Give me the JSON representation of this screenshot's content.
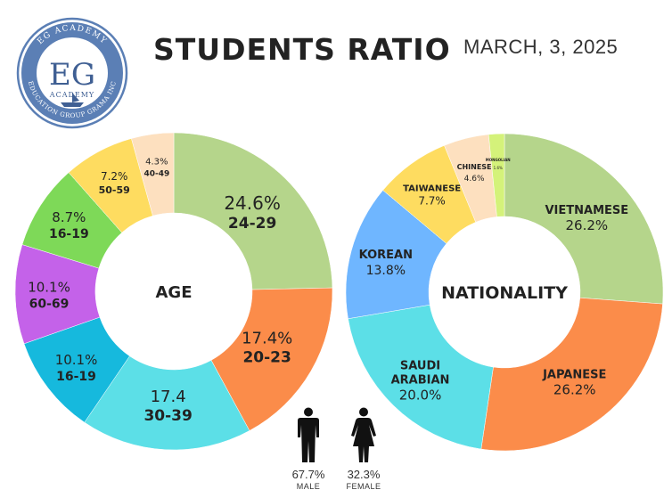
{
  "header": {
    "title": "STUDENTS RATIO",
    "date": "MARCH, 3, 2025"
  },
  "logo": {
    "monogram": "EG",
    "inner_word": "ACADEMY",
    "ring_top": "EG ACADEMY",
    "ring_bottom": "EDUCATION GROUP GRAMA INC",
    "colors": {
      "ring": "#5b7fb5",
      "text": "#3f5f93"
    }
  },
  "chart_data": [
    {
      "type": "pie",
      "title": "AGE",
      "slices": [
        {
          "value_label": "24.6%",
          "category": "24-29",
          "value": 24.6,
          "color": "#b5d58b"
        },
        {
          "value_label": "17.4%",
          "category": "20-23",
          "value": 17.4,
          "color": "#fb8c4a"
        },
        {
          "value_label": "17.4",
          "category": "30-39",
          "value": 17.4,
          "color": "#5cdfe7"
        },
        {
          "value_label": "10.1%",
          "category": "16-19",
          "value": 10.1,
          "color": "#16b9dd"
        },
        {
          "value_label": "10.1%",
          "category": "60-69",
          "value": 10.1,
          "color": "#c462e9"
        },
        {
          "value_label": "8.7%",
          "category": "16-19",
          "value": 8.7,
          "color": "#7ed958"
        },
        {
          "value_label": "7.2%",
          "category": "50-59",
          "value": 7.2,
          "color": "#fedc60"
        },
        {
          "value_label": "4.3%",
          "category": "40-49",
          "value": 4.3,
          "color": "#fde0bf"
        }
      ]
    },
    {
      "type": "pie",
      "title": "NATIONALITY",
      "slices": [
        {
          "category": "VIETNAMESE",
          "value_label": "26.2%",
          "value": 26.2,
          "color": "#b5d58b"
        },
        {
          "category": "JAPANESE",
          "value_label": "26.2%",
          "value": 26.2,
          "color": "#fb8c4a"
        },
        {
          "category": "SAUDI ARABIAN",
          "value_label": "20.0%",
          "value": 20.0,
          "color": "#5cdfe7"
        },
        {
          "category": "KOREAN",
          "value_label": "13.8%",
          "value": 13.8,
          "color": "#6fb6ff"
        },
        {
          "category": "TAIWANESE",
          "value_label": "7.7%",
          "value": 7.7,
          "color": "#fedc60"
        },
        {
          "category": "CHINESE",
          "value_label": "4.6%",
          "value": 4.6,
          "color": "#fde0bf"
        },
        {
          "category": "MONGOLIAN",
          "value_label": "1.6%",
          "value": 1.6,
          "color": "#d4f27a"
        }
      ]
    }
  ],
  "gender": [
    {
      "label": "MALE",
      "value_label": "67.7%",
      "value": 67.7,
      "icon": "male-icon"
    },
    {
      "label": "FEMALE",
      "value_label": "32.3%",
      "value": 32.3,
      "icon": "female-icon"
    }
  ]
}
